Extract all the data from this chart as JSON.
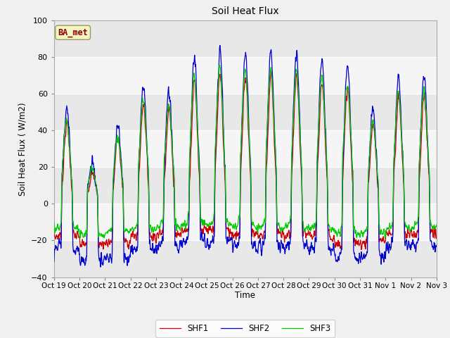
{
  "title": "Soil Heat Flux",
  "ylabel": "Soil Heat Flux ( W/m2)",
  "xlabel": "Time",
  "ylim": [
    -40,
    100
  ],
  "yticks": [
    -40,
    -20,
    0,
    20,
    40,
    60,
    80,
    100
  ],
  "legend_labels": [
    "SHF1",
    "SHF2",
    "SHF3"
  ],
  "colors": [
    "#cc0000",
    "#0000cc",
    "#00cc00"
  ],
  "site_label": "BA_met",
  "band_colors": [
    "#e8e8e8",
    "#f5f5f5"
  ],
  "n_days": 15,
  "pts_per_day": 96,
  "day_peaks_shf2": [
    52,
    22,
    42,
    65,
    61,
    79,
    83,
    82,
    83,
    82,
    78,
    74,
    51,
    69,
    70
  ],
  "night_mins_shf2": [
    -28,
    -35,
    -33,
    -28,
    -26,
    -23,
    -24,
    -26,
    -27,
    -27,
    -28,
    -35,
    -33,
    -26,
    -26
  ],
  "tick_labels": [
    "Oct 19",
    "Oct 20",
    "Oct 21",
    "Oct 22",
    "Oct 23",
    "Oct 24",
    "Oct 25",
    "Oct 26",
    "Oct 27",
    "Oct 28",
    "Oct 29",
    "Oct 30",
    "Oct 31",
    "Nov 1",
    "Nov 2",
    "Nov 3"
  ]
}
